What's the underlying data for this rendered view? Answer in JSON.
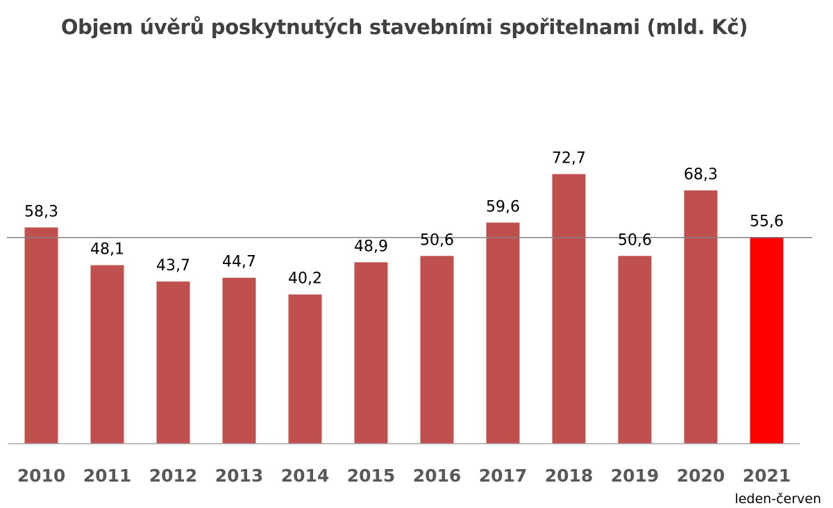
{
  "chart_data": {
    "type": "bar",
    "title": "Objem úvěrů poskytnutých stavebními spořitelnami (mld. Kč)",
    "categories": [
      "2010",
      "2011",
      "2012",
      "2013",
      "2014",
      "2015",
      "2016",
      "2017",
      "2018",
      "2019",
      "2020",
      "2021"
    ],
    "category_note": "leden-červen",
    "values": [
      58.3,
      48.1,
      43.7,
      44.7,
      40.2,
      48.9,
      50.6,
      59.6,
      72.7,
      50.6,
      68.3,
      55.6
    ],
    "value_labels": [
      "58,3",
      "48,1",
      "43,7",
      "44,7",
      "40,2",
      "48,9",
      "50,6",
      "59,6",
      "72,7",
      "50,6",
      "68,3",
      "55,6"
    ],
    "reference_line": 55.6,
    "ylim": [
      0,
      80
    ],
    "grid": false,
    "legend": "none",
    "xlabel": "",
    "ylabel": "",
    "colors": {
      "bar": "#c0504d",
      "highlight_bar": "#ff0000",
      "reference_line": "#808080",
      "axis": "#a6a6a6"
    },
    "highlight_index": 11
  }
}
